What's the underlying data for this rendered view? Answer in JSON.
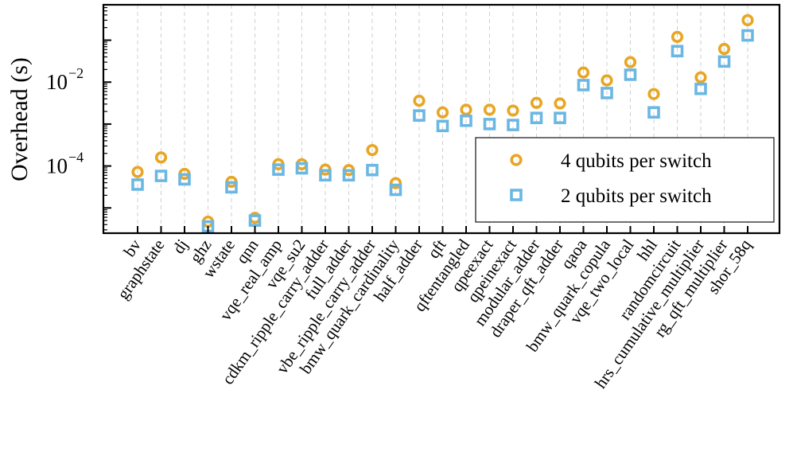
{
  "chart_data": {
    "type": "scatter",
    "ylabel": "Overhead (s)",
    "yscale": "log",
    "ylim": [
      2.5e-06,
      0.7
    ],
    "ytick_base": "10",
    "yticks": [
      {
        "value": 0.0001,
        "exp": "−4"
      },
      {
        "value": 0.01,
        "exp": "−2"
      }
    ],
    "categories": [
      "bv",
      "graphstate",
      "dj",
      "ghz",
      "wstate",
      "qnn",
      "vqe_real_amp",
      "vqe_su2",
      "cdkm_ripple_carry_adder",
      "full_adder",
      "vbe_ripple_carry_adder",
      "bmw_quark_cardinality",
      "half_adder",
      "qft",
      "qftentangled",
      "qpeexact",
      "qpeinexact",
      "modular_adder",
      "draper_qft_adder",
      "qaoa",
      "bmw_quark_copula",
      "vqe_two_local",
      "hhl",
      "randomcircuit",
      "hrs_cumulative_multiplier",
      "rg_qft_multiplier",
      "shor_58q"
    ],
    "series": [
      {
        "name": "4 qubits per switch",
        "marker": "circle",
        "color": "#E8A623",
        "values": [
          7.2e-05,
          0.00016,
          6.5e-05,
          4.7e-06,
          4.2e-05,
          5.8e-06,
          0.00011,
          0.00011,
          8.2e-05,
          8e-05,
          0.00024,
          3.9e-05,
          0.0036,
          0.0019,
          0.0022,
          0.0022,
          0.0021,
          0.0032,
          0.0031,
          0.017,
          0.011,
          0.03,
          0.0052,
          0.12,
          0.013,
          0.062,
          0.3
        ]
      },
      {
        "name": "2 qubits per switch",
        "marker": "square",
        "color": "#6BB7E3",
        "values": [
          3.6e-05,
          5.8e-05,
          4.8e-05,
          3.6e-06,
          3.1e-05,
          5e-06,
          8.2e-05,
          8.8e-05,
          6e-05,
          6e-05,
          8e-05,
          2.7e-05,
          0.0016,
          0.0009,
          0.0012,
          0.001,
          0.00095,
          0.0014,
          0.0014,
          0.0085,
          0.0055,
          0.015,
          0.0019,
          0.055,
          0.0069,
          0.031,
          0.13
        ]
      }
    ],
    "legend_position": "lower-right"
  }
}
